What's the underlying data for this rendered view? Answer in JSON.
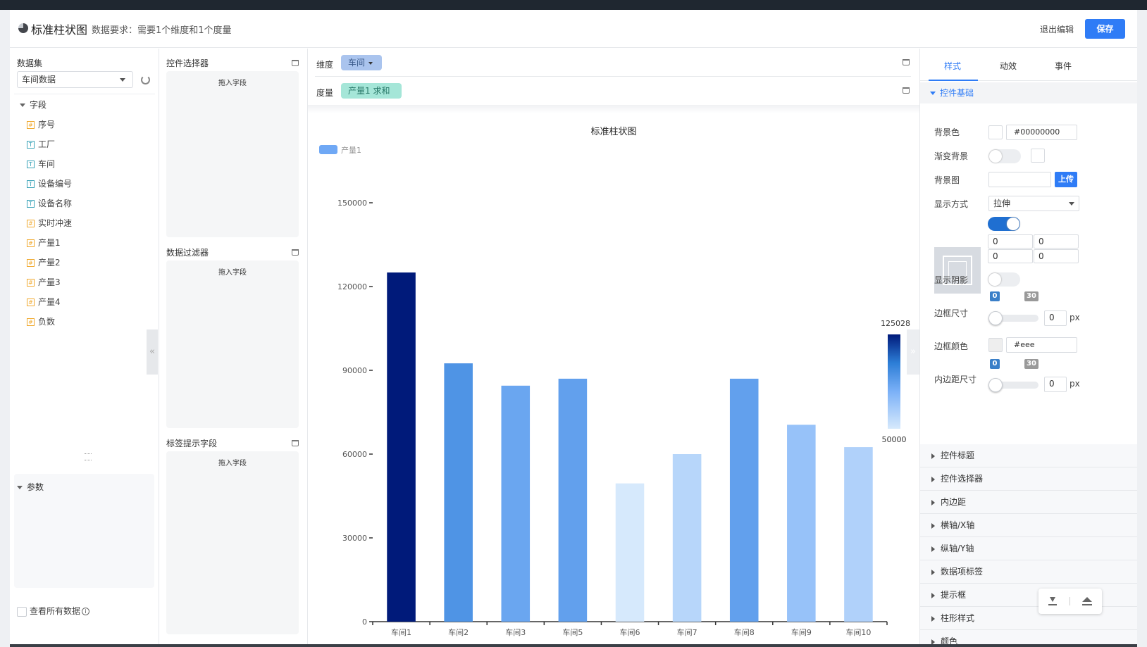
{
  "header": {
    "title": "标准柱状图",
    "requirement": "数据要求：需要1个维度和1个度量",
    "exit_label": "退出编辑",
    "save_label": "保存"
  },
  "dataset": {
    "label": "数据集",
    "selected": "车间数据",
    "fields_label": "字段",
    "fields": [
      {
        "name": "序号",
        "type": "number"
      },
      {
        "name": "工厂",
        "type": "text"
      },
      {
        "name": "车间",
        "type": "text"
      },
      {
        "name": "设备编号",
        "type": "text"
      },
      {
        "name": "设备名称",
        "type": "text"
      },
      {
        "name": "实时冲速",
        "type": "number"
      },
      {
        "name": "产量1",
        "type": "number"
      },
      {
        "name": "产量2",
        "type": "number"
      },
      {
        "name": "产量3",
        "type": "number"
      },
      {
        "name": "产量4",
        "type": "number"
      },
      {
        "name": "负数",
        "type": "number"
      }
    ],
    "params_label": "参数",
    "view_all_label": "查看所有数据",
    "info_glyph": "i"
  },
  "selectors": {
    "control_selector": "控件选择器",
    "data_filter": "数据过滤器",
    "tooltip_fields": "标签提示字段",
    "drop_hint": "拖入字段"
  },
  "encoding": {
    "dimension_label": "维度",
    "dimension_chip": "车间",
    "measure_label": "度量",
    "measure_chip": "产量1",
    "measure_agg": "求和"
  },
  "chart_data": {
    "type": "bar",
    "title": "标准柱状图",
    "legend": "产量1",
    "categories": [
      "车间1",
      "车间2",
      "车间3",
      "车间5",
      "车间6",
      "车间7",
      "车间8",
      "车间9",
      "车间10"
    ],
    "values": [
      125028,
      92500,
      84500,
      87000,
      49500,
      60000,
      87000,
      70500,
      62500
    ],
    "ylim": [
      0,
      150000
    ],
    "yticks": [
      0,
      30000,
      60000,
      90000,
      120000,
      150000
    ],
    "visual_map": {
      "min_label": "50000",
      "max_label": "125028",
      "min": 50000,
      "max": 125028
    }
  },
  "colors": {
    "accent": "#2f7cf6",
    "bar_low": "#d6e9fc",
    "bar_high": "#001a7a"
  },
  "style_panel": {
    "tabs": [
      "样式",
      "动效",
      "事件"
    ],
    "section_basic": "控件基础",
    "bg_color_label": "背景色",
    "bg_color_value": "#00000000",
    "gradient_label": "渐变背景",
    "bg_image_label": "背景图",
    "upload_label": "上传",
    "display_mode_label": "显示方式",
    "display_mode_value": "拉伸",
    "slice_values": [
      "0",
      "0",
      "0",
      "0"
    ],
    "shadow_label": "显示阴影",
    "range_min": "0",
    "range_max": "30",
    "border_size_label": "边框尺寸",
    "border_size_value": "0",
    "px": "px",
    "border_color_label": "边框颜色",
    "border_color_value": "#eee",
    "padding_size_label": "内边距尺寸",
    "padding_size_value": "0",
    "sections": [
      "控件标题",
      "控件选择器",
      "内边距",
      "横轴/X轴",
      "纵轴/Y轴",
      "数据项标签",
      "提示框",
      "柱形样式",
      "颜色"
    ]
  }
}
